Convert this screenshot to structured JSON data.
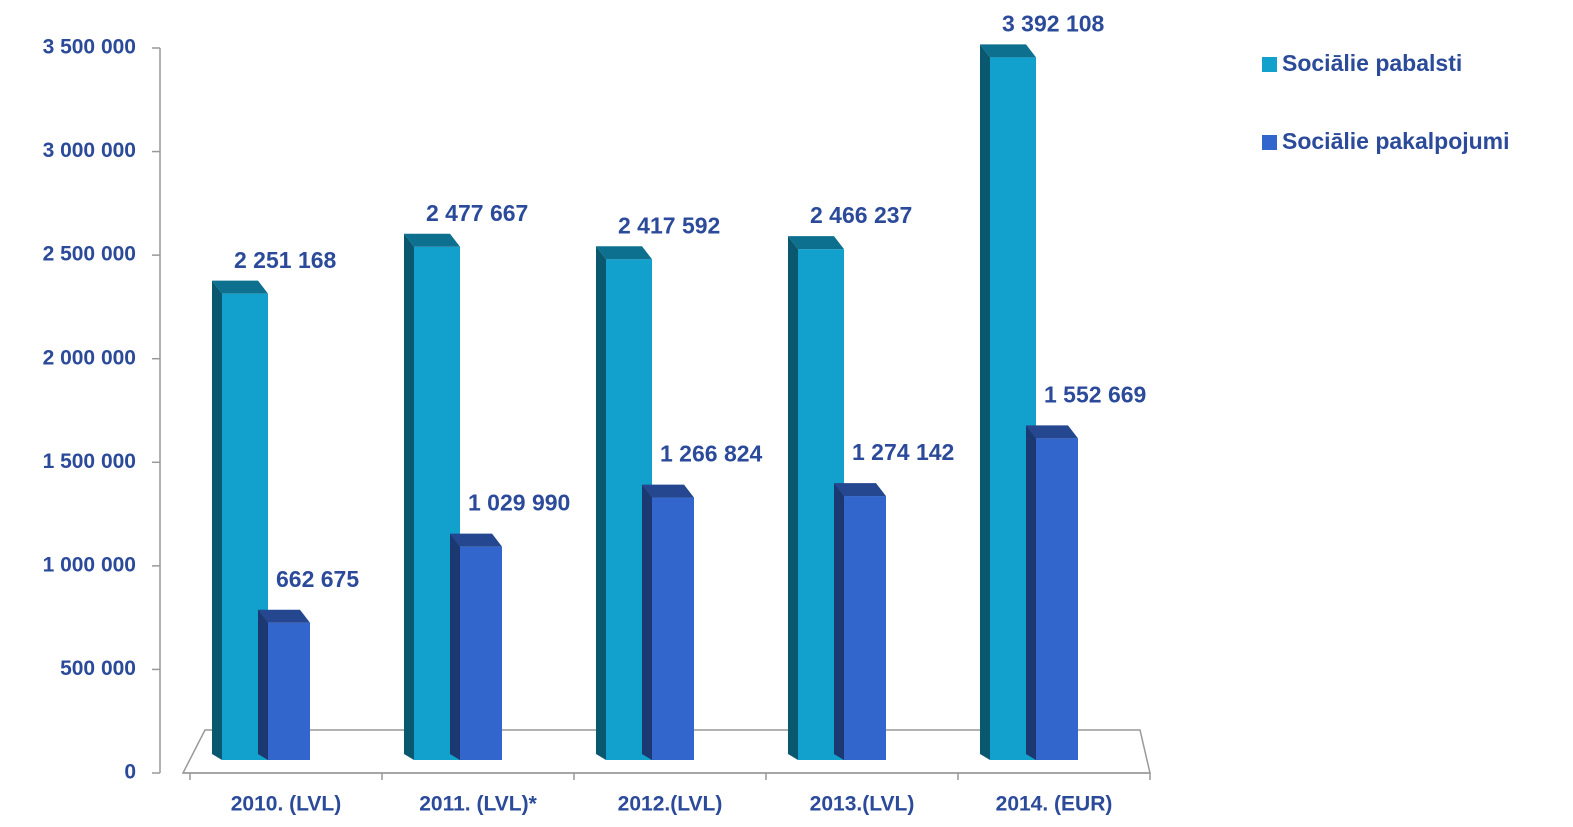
{
  "chart_data": {
    "type": "bar3d",
    "categories": [
      "2010. (LVL)",
      "2011. (LVL)*",
      "2012.(LVL)",
      "2013.(LVL)",
      "2014. (EUR)"
    ],
    "series": [
      {
        "name": "Sociālie pabalsti",
        "color": "#12a0cc",
        "values": [
          2251168,
          2477667,
          2417592,
          2466237,
          3392108
        ],
        "value_labels": [
          "2 251 168",
          "2 477 667",
          "2 417 592",
          "2 466 237",
          "3 392 108"
        ]
      },
      {
        "name": "Sociālie pakalpojumi",
        "color": "#3366cc",
        "values": [
          662675,
          1029990,
          1266824,
          1274142,
          1552669
        ],
        "value_labels": [
          "662 675",
          "1 029 990",
          "1 266 824",
          "1 274 142",
          "1 552 669"
        ]
      }
    ],
    "ylim": [
      0,
      3500000
    ],
    "yticks": [
      0,
      {
        "value": 500000,
        "label": "500 000"
      },
      {
        "value": 1000000,
        "label": "1 000 000"
      },
      {
        "value": 1500000,
        "label": "1 500 000"
      },
      {
        "value": 2000000,
        "label": "2 000 000"
      },
      {
        "value": 2500000,
        "label": "2 500 000"
      },
      {
        "value": 3000000,
        "label": "3 000 000"
      },
      {
        "value": 3500000,
        "label": "3 500 000"
      }
    ],
    "grid": false,
    "legend": "top-right"
  }
}
